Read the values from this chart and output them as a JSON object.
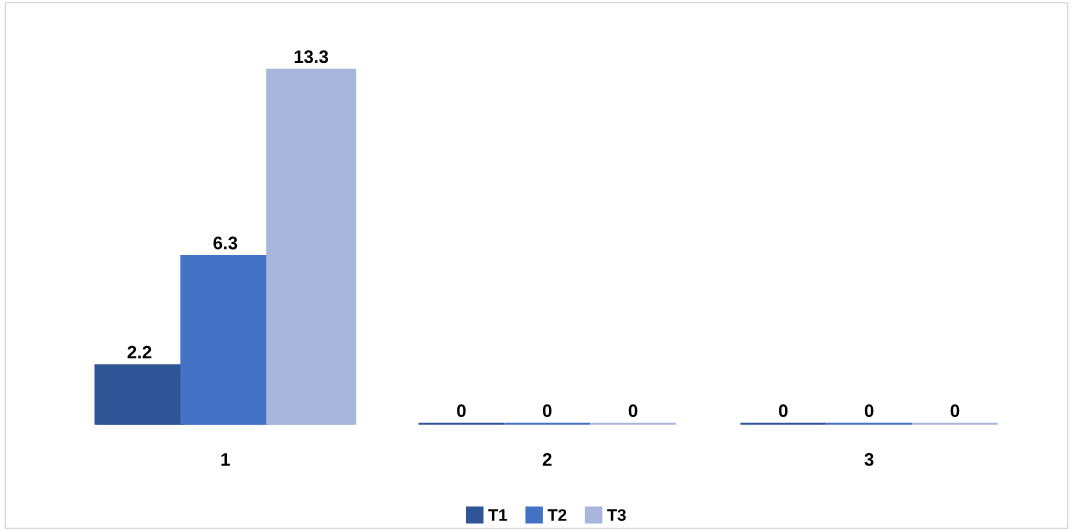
{
  "chart_data": {
    "type": "bar",
    "categories": [
      "1",
      "2",
      "3"
    ],
    "series": [
      {
        "name": "T1",
        "color": "#2f5597",
        "values": [
          2.2,
          0,
          0
        ]
      },
      {
        "name": "T2",
        "color": "#4472c4",
        "values": [
          6.3,
          0,
          0
        ]
      },
      {
        "name": "T3",
        "color": "#a9b6db",
        "values": [
          13.3,
          0,
          0
        ]
      }
    ],
    "data_labels": true,
    "legend": "bottom",
    "grid": false,
    "tick_labels": "x"
  }
}
